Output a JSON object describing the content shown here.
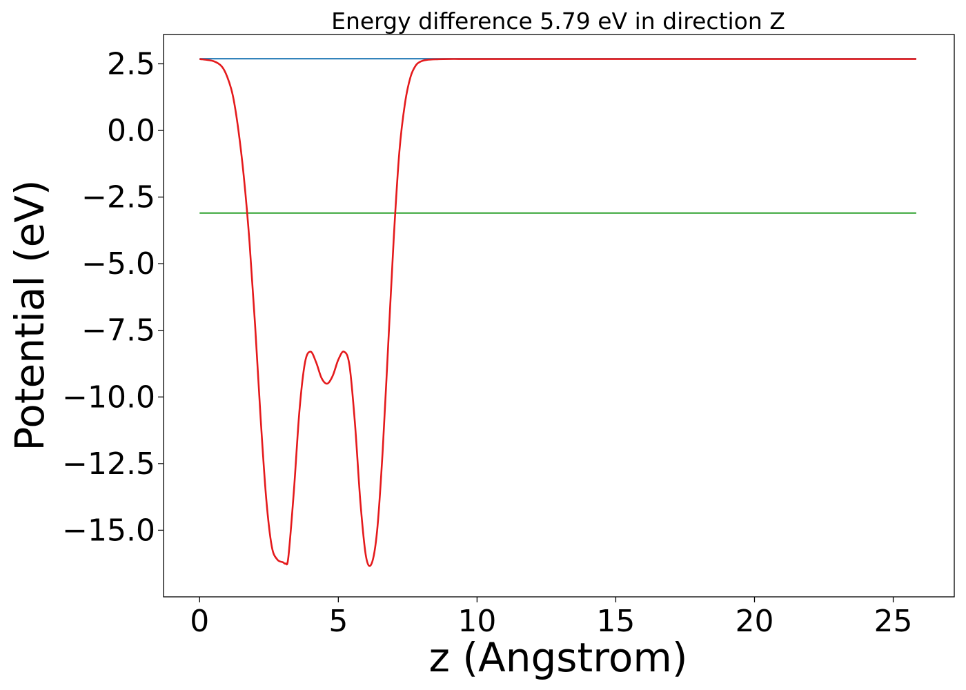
{
  "chart_data": {
    "type": "line",
    "title": "Energy difference 5.79 eV in direction Z",
    "xlabel": "z (Angstrom)",
    "ylabel": "Potential (eV)",
    "xlim": [
      -1.3,
      27.2
    ],
    "ylim": [
      -17.5,
      3.6
    ],
    "xticks": [
      0,
      5,
      10,
      15,
      20,
      25
    ],
    "xtick_labels": [
      "0",
      "5",
      "10",
      "15",
      "20",
      "25"
    ],
    "yticks": [
      2.5,
      0.0,
      -2.5,
      -5.0,
      -7.5,
      -10.0,
      -12.5,
      -15.0
    ],
    "ytick_labels": [
      "2.5",
      "0.0",
      "−2.5",
      "−5.0",
      "−7.5",
      "−10.0",
      "−12.5",
      "−15.0"
    ],
    "grid": false,
    "legend": "none",
    "series": [
      {
        "color": "#1f77b4",
        "x": [
          0,
          25.83
        ],
        "y": [
          2.69,
          2.69
        ]
      },
      {
        "color": "#2ca02c",
        "x": [
          0,
          25.83
        ],
        "y": [
          -3.1,
          -3.1
        ]
      },
      {
        "color": "#e41a1c",
        "x": [
          0,
          0.5,
          0.8,
          1.0,
          1.2,
          1.4,
          1.6,
          1.8,
          2.0,
          2.2,
          2.4,
          2.6,
          2.8,
          3.0,
          3.1,
          3.2,
          3.4,
          3.6,
          3.8,
          4.0,
          4.2,
          4.4,
          4.6,
          4.8,
          5.0,
          5.2,
          5.4,
          5.6,
          5.8,
          6.0,
          6.2,
          6.4,
          6.6,
          6.8,
          7.0,
          7.2,
          7.4,
          7.6,
          7.8,
          8.0,
          8.2,
          8.5,
          9.0,
          9.5,
          10.0,
          12.0,
          15.0,
          20.0,
          25.83
        ],
        "y": [
          2.68,
          2.6,
          2.4,
          2.0,
          1.3,
          0.0,
          -1.8,
          -4.2,
          -7.3,
          -10.8,
          -13.8,
          -15.6,
          -16.1,
          -16.2,
          -16.25,
          -16.0,
          -13.5,
          -10.5,
          -8.7,
          -8.3,
          -8.7,
          -9.3,
          -9.5,
          -9.2,
          -8.6,
          -8.3,
          -8.8,
          -11.0,
          -14.0,
          -16.0,
          -16.25,
          -15.0,
          -12.0,
          -8.0,
          -4.0,
          -0.8,
          1.0,
          2.0,
          2.45,
          2.6,
          2.65,
          2.67,
          2.68,
          2.68,
          2.68,
          2.68,
          2.68,
          2.68,
          2.68
        ]
      }
    ]
  }
}
